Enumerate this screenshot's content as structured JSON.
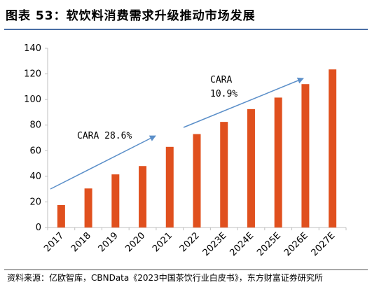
{
  "figure": {
    "title": "图表 53：软饮料消费需求升级推动市场发展",
    "source": "资料来源：亿欧智库，CBNData《2023中国茶饮行业白皮书》，东方财富证券研究所"
  },
  "colors": {
    "bar": "#e0501e",
    "trend_arrow": "#5b8fc9",
    "title_rule": "#4a6fa5",
    "axis": "#bfbfbf"
  },
  "chart_data": {
    "type": "bar",
    "title": "",
    "xlabel": "",
    "ylabel": "",
    "categories": [
      "2017",
      "2018",
      "2019",
      "2020",
      "2021",
      "2022",
      "2023E",
      "2024E",
      "2025E",
      "2026E",
      "2027E"
    ],
    "values": [
      17.5,
      30.5,
      41.5,
      48,
      63,
      73,
      82.5,
      92.5,
      101.5,
      112,
      123.5
    ],
    "ylim": [
      0,
      140
    ],
    "yticks": [
      0,
      20,
      40,
      60,
      80,
      100,
      120,
      140
    ],
    "grid": false,
    "legend": "none",
    "annotations": [
      {
        "lines": [
          "CARA 28.6%"
        ],
        "from": 0,
        "to": 4,
        "label_anchor": 0.5
      },
      {
        "lines": [
          "CARA",
          "10.9%"
        ],
        "from": 5,
        "to": 9,
        "label_anchor": 6.3
      }
    ]
  }
}
